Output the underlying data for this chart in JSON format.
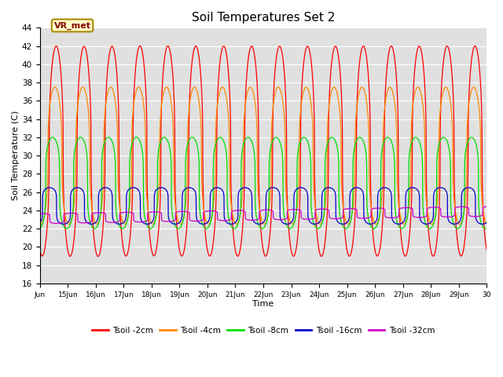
{
  "title": "Soil Temperatures Set 2",
  "xlabel": "Time",
  "ylabel": "Soil Temperature (C)",
  "ylim": [
    16,
    44
  ],
  "xlim": [
    0,
    16
  ],
  "yticks": [
    16,
    18,
    20,
    22,
    24,
    26,
    28,
    30,
    32,
    34,
    36,
    38,
    40,
    42,
    44
  ],
  "xtick_labels": [
    "Jun",
    "15Jun",
    "16Jun",
    "17Jun",
    "18Jun",
    "19Jun",
    "20Jun",
    "21Jun",
    "22Jun",
    "23Jun",
    "24Jun",
    "25Jun",
    "26Jun",
    "27Jun",
    "28Jun",
    "29Jun",
    "30"
  ],
  "annotation": "VR_met",
  "annotation_edge_color": "#aa8800",
  "annotation_face_color": "#ffffcc",
  "annotation_text_color": "#880000",
  "line_colors": [
    "#ff0000",
    "#ff8800",
    "#00dd00",
    "#0000cc",
    "#cc00cc"
  ],
  "line_labels": [
    "Tsoil -2cm",
    "Tsoil -4cm",
    "Tsoil -8cm",
    "Tsoil -16cm",
    "Tsoil -32cm"
  ],
  "bg_color": "#e0e0e0",
  "fig_bg_color": "#ffffff",
  "grid_color": "#ffffff"
}
